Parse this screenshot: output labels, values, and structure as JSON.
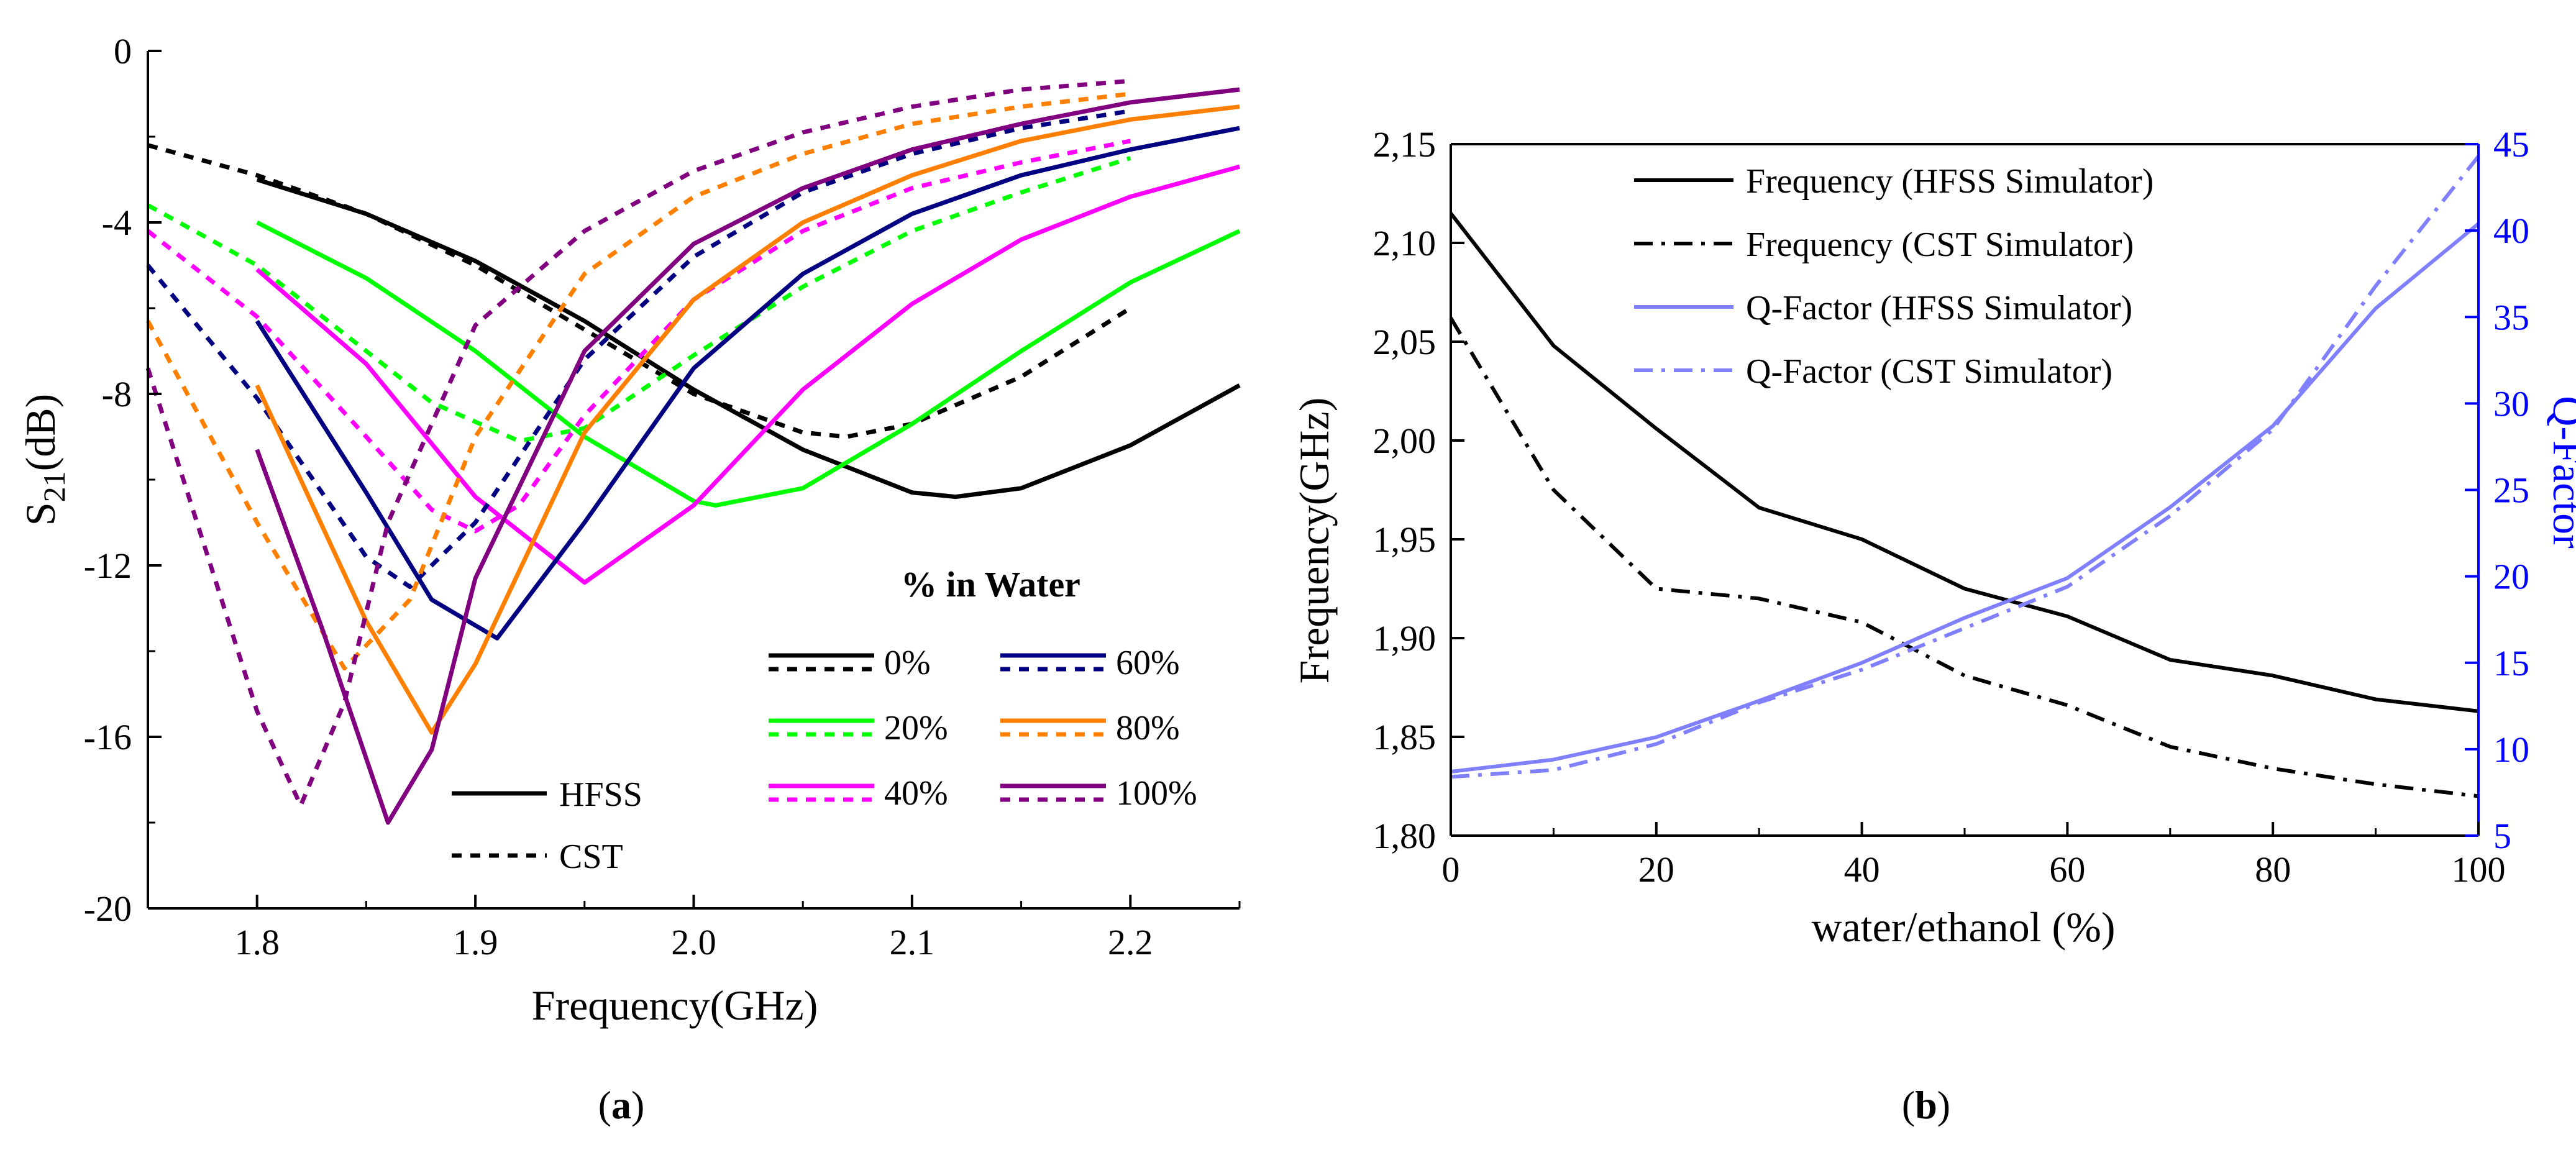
{
  "chart_data": [
    {
      "type": "line",
      "panel": "a",
      "caption_open": "(",
      "caption_letter": "a",
      "caption_close": ")",
      "xlabel": "Frequency(GHz)",
      "ylabel_base": "S",
      "ylabel_sub": "21",
      "ylabel_unit": "(dB)",
      "xlim": [
        1.75,
        2.25
      ],
      "ylim": [
        -20,
        0
      ],
      "x_ticks": [
        "1.8",
        "1.9",
        "2.0",
        "2.1",
        "2.2"
      ],
      "x_tick_values": [
        1.8,
        1.9,
        2.0,
        2.1,
        2.2
      ],
      "y_ticks": [
        "0",
        "-4",
        "-8",
        "-12",
        "-16",
        "-20"
      ],
      "y_tick_values": [
        0,
        -4,
        -8,
        -12,
        -16,
        -20
      ],
      "legend_title": "% in Water",
      "legend_entries": [
        "0%",
        "20%",
        "40%",
        "60%",
        "80%",
        "100%"
      ],
      "style_legend": [
        "HFSS",
        "CST"
      ],
      "series": [
        {
          "name": "0%",
          "simulator": "HFSS",
          "color": "#000000",
          "dashed": false,
          "x": [
            1.8,
            1.85,
            1.9,
            1.95,
            2.0,
            2.05,
            2.1,
            2.12,
            2.15,
            2.2,
            2.25
          ],
          "y": [
            -3.0,
            -3.8,
            -4.9,
            -6.3,
            -7.9,
            -9.3,
            -10.3,
            -10.4,
            -10.2,
            -9.2,
            -7.8
          ]
        },
        {
          "name": "0%",
          "simulator": "CST",
          "color": "#000000",
          "dashed": true,
          "x": [
            1.75,
            1.8,
            1.85,
            1.9,
            1.95,
            2.0,
            2.05,
            2.07,
            2.1,
            2.15,
            2.2
          ],
          "y": [
            -2.2,
            -2.9,
            -3.8,
            -5.0,
            -6.5,
            -8.0,
            -8.9,
            -9.0,
            -8.7,
            -7.6,
            -6.0
          ]
        },
        {
          "name": "20%",
          "simulator": "HFSS",
          "color": "#00ff00",
          "dashed": false,
          "x": [
            1.8,
            1.85,
            1.9,
            1.95,
            2.0,
            2.01,
            2.05,
            2.1,
            2.15,
            2.2,
            2.25
          ],
          "y": [
            -4.0,
            -5.3,
            -7.0,
            -9.0,
            -10.5,
            -10.6,
            -10.2,
            -8.7,
            -7.0,
            -5.4,
            -4.2
          ]
        },
        {
          "name": "20%",
          "simulator": "CST",
          "color": "#00ff00",
          "dashed": true,
          "x": [
            1.75,
            1.8,
            1.85,
            1.88,
            1.92,
            1.95,
            2.0,
            2.05,
            2.1,
            2.15,
            2.2
          ],
          "y": [
            -3.6,
            -5.0,
            -7.0,
            -8.2,
            -9.1,
            -8.8,
            -7.1,
            -5.5,
            -4.2,
            -3.3,
            -2.5
          ]
        },
        {
          "name": "40%",
          "simulator": "HFSS",
          "color": "#ff00ff",
          "dashed": false,
          "x": [
            1.8,
            1.85,
            1.9,
            1.95,
            2.0,
            2.05,
            2.1,
            2.15,
            2.2,
            2.25
          ],
          "y": [
            -5.1,
            -7.3,
            -10.4,
            -12.4,
            -10.6,
            -7.9,
            -5.9,
            -4.4,
            -3.4,
            -2.7
          ]
        },
        {
          "name": "40%",
          "simulator": "CST",
          "color": "#ff00ff",
          "dashed": true,
          "x": [
            1.75,
            1.8,
            1.85,
            1.88,
            1.9,
            1.92,
            1.95,
            2.0,
            2.05,
            2.1,
            2.15,
            2.2
          ],
          "y": [
            -4.2,
            -6.2,
            -9.0,
            -10.7,
            -11.2,
            -10.6,
            -8.5,
            -5.8,
            -4.2,
            -3.2,
            -2.6,
            -2.1
          ]
        },
        {
          "name": "60%",
          "simulator": "HFSS",
          "color": "#000080",
          "dashed": false,
          "x": [
            1.8,
            1.85,
            1.88,
            1.91,
            1.95,
            2.0,
            2.05,
            2.1,
            2.15,
            2.2,
            2.25
          ],
          "y": [
            -6.3,
            -10.3,
            -12.8,
            -13.7,
            -11.0,
            -7.4,
            -5.2,
            -3.8,
            -2.9,
            -2.3,
            -1.8
          ]
        },
        {
          "name": "60%",
          "simulator": "CST",
          "color": "#000080",
          "dashed": true,
          "x": [
            1.75,
            1.8,
            1.85,
            1.87,
            1.9,
            1.95,
            2.0,
            2.05,
            2.1,
            2.15,
            2.2
          ],
          "y": [
            -5.0,
            -8.1,
            -11.8,
            -12.5,
            -11.0,
            -7.2,
            -4.8,
            -3.3,
            -2.4,
            -1.8,
            -1.4
          ]
        },
        {
          "name": "80%",
          "simulator": "HFSS",
          "color": "#ff7f00",
          "dashed": false,
          "x": [
            1.8,
            1.85,
            1.88,
            1.9,
            1.95,
            2.0,
            2.05,
            2.1,
            2.15,
            2.2,
            2.25
          ],
          "y": [
            -7.8,
            -13.3,
            -15.9,
            -14.3,
            -8.9,
            -5.8,
            -4.0,
            -2.9,
            -2.1,
            -1.6,
            -1.3
          ]
        },
        {
          "name": "80%",
          "simulator": "CST",
          "color": "#ff7f00",
          "dashed": true,
          "x": [
            1.75,
            1.8,
            1.84,
            1.87,
            1.9,
            1.95,
            2.0,
            2.05,
            2.1,
            2.15,
            2.2
          ],
          "y": [
            -6.3,
            -11.0,
            -14.4,
            -12.8,
            -9.0,
            -5.2,
            -3.4,
            -2.4,
            -1.7,
            -1.3,
            -1.0
          ]
        },
        {
          "name": "100%",
          "simulator": "HFSS",
          "color": "#800080",
          "dashed": false,
          "x": [
            1.8,
            1.83,
            1.86,
            1.88,
            1.9,
            1.95,
            2.0,
            2.05,
            2.1,
            2.15,
            2.2,
            2.25
          ],
          "y": [
            -9.3,
            -13.5,
            -18.0,
            -16.3,
            -12.3,
            -7.0,
            -4.5,
            -3.2,
            -2.3,
            -1.7,
            -1.2,
            -0.9
          ]
        },
        {
          "name": "100%",
          "simulator": "CST",
          "color": "#800080",
          "dashed": true,
          "x": [
            1.75,
            1.8,
            1.82,
            1.84,
            1.86,
            1.9,
            1.95,
            2.0,
            2.05,
            2.1,
            2.15,
            2.2
          ],
          "y": [
            -7.4,
            -15.4,
            -17.6,
            -15.2,
            -11.0,
            -6.4,
            -4.2,
            -2.8,
            -1.9,
            -1.3,
            -0.9,
            -0.7
          ]
        }
      ]
    },
    {
      "type": "line",
      "panel": "b",
      "caption_open": "(",
      "caption_letter": "b",
      "caption_close": ")",
      "xlabel": "water/ethanol (%)",
      "ylabel": "Frequency(GHz)",
      "y2label": "Q-Factor",
      "xlim": [
        0,
        100
      ],
      "ylim": [
        1.8,
        2.15
      ],
      "y2lim": [
        5,
        45
      ],
      "x_ticks": [
        "0",
        "20",
        "40",
        "60",
        "80",
        "100"
      ],
      "x_tick_values": [
        0,
        20,
        40,
        60,
        80,
        100
      ],
      "y_ticks": [
        "1,80",
        "1,85",
        "1,90",
        "1,95",
        "2,00",
        "2,05",
        "2,10",
        "2,15"
      ],
      "y_tick_values": [
        1.8,
        1.85,
        1.9,
        1.95,
        2.0,
        2.05,
        2.1,
        2.15
      ],
      "y2_ticks": [
        "5",
        "10",
        "15",
        "20",
        "25",
        "30",
        "35",
        "40",
        "45"
      ],
      "y2_tick_values": [
        5,
        10,
        15,
        20,
        25,
        30,
        35,
        40,
        45
      ],
      "series": [
        {
          "name": "Frequency (HFSS Simulator)",
          "axis": "left",
          "color": "#000000",
          "style": "solid",
          "x": [
            0,
            10,
            20,
            30,
            40,
            50,
            60,
            70,
            80,
            90,
            100
          ],
          "y": [
            2.115,
            2.048,
            2.006,
            1.966,
            1.95,
            1.925,
            1.911,
            1.889,
            1.881,
            1.869,
            1.863
          ]
        },
        {
          "name": "Frequency (CST Simulator)",
          "axis": "left",
          "color": "#000000",
          "style": "dashdot",
          "x": [
            0,
            10,
            20,
            30,
            40,
            50,
            60,
            70,
            80,
            90,
            100
          ],
          "y": [
            2.062,
            1.975,
            1.925,
            1.92,
            1.908,
            1.881,
            1.866,
            1.845,
            1.834,
            1.826,
            1.82
          ]
        },
        {
          "name": "Q-Factor (HFSS Simulator)",
          "axis": "right",
          "color": "#8080ff",
          "style": "solid",
          "x": [
            0,
            10,
            20,
            30,
            40,
            50,
            60,
            70,
            80,
            90,
            100
          ],
          "y": [
            8.7,
            9.4,
            10.7,
            12.8,
            15.0,
            17.6,
            19.9,
            24.0,
            28.7,
            35.5,
            40.4
          ]
        },
        {
          "name": "Q-Factor (CST Simulator)",
          "axis": "right",
          "color": "#8080ff",
          "style": "dashdot",
          "x": [
            0,
            10,
            20,
            30,
            40,
            50,
            60,
            70,
            80,
            90,
            100
          ],
          "y": [
            8.4,
            8.8,
            10.3,
            12.7,
            14.6,
            17.0,
            19.4,
            23.5,
            28.5,
            36.8,
            44.3
          ]
        }
      ]
    }
  ]
}
